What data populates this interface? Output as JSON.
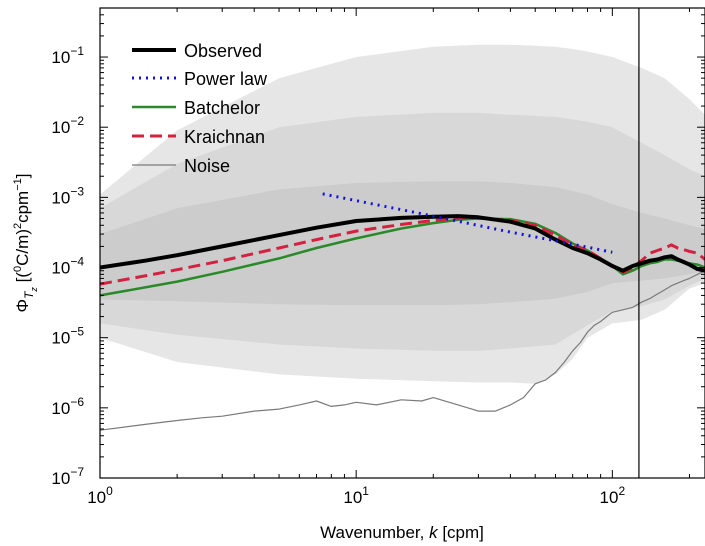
{
  "chart_data": {
    "type": "line",
    "title": "",
    "xlabel": "Wavenumber, k [cpm]",
    "xlabel_parts": {
      "prefix": "Wavenumber, ",
      "variable": "k",
      "suffix": " [cpm]"
    },
    "ylabel": "Φ_Tz [(°C/m)²cpm⁻¹]",
    "ylabel_parts": {
      "symbol": "Φ",
      "sub": "T",
      "subsub": "z",
      "open": " [(",
      "sup_degree": "0",
      "unit_mid": "C/m)",
      "sup_two": "2",
      "unit_cpm": "cpm",
      "sup_minus": "−1",
      "close": "]"
    },
    "xscale": "log",
    "yscale": "log",
    "xlim": [
      1,
      230
    ],
    "ylim": [
      1e-07,
      0.5
    ],
    "x_ticks": [
      {
        "value": 1,
        "base": "10",
        "exp": "0"
      },
      {
        "value": 10,
        "base": "10",
        "exp": "1"
      },
      {
        "value": 100,
        "base": "10",
        "exp": "2"
      }
    ],
    "y_ticks": [
      {
        "value": 1e-07,
        "base": "10",
        "exp": "−7"
      },
      {
        "value": 1e-06,
        "base": "10",
        "exp": "−6"
      },
      {
        "value": 1e-05,
        "base": "10",
        "exp": "−5"
      },
      {
        "value": 0.0001,
        "base": "10",
        "exp": "−4"
      },
      {
        "value": 0.001,
        "base": "10",
        "exp": "−3"
      },
      {
        "value": 0.01,
        "base": "10",
        "exp": "−2"
      },
      {
        "value": 0.1,
        "base": "10",
        "exp": "−1"
      }
    ],
    "legend_position": "top-left",
    "vertical_line_x": 127,
    "bands": [
      {
        "color": "#e6e6e6",
        "x": [
          1,
          2,
          5,
          10,
          20,
          30,
          40,
          50,
          60,
          70,
          80,
          100,
          130,
          160,
          200,
          230
        ],
        "upper": [
          0.0011,
          0.009,
          0.05,
          0.1,
          0.14,
          0.15,
          0.15,
          0.145,
          0.14,
          0.13,
          0.12,
          0.1,
          0.07,
          0.05,
          0.025,
          0.015
        ],
        "lower": [
          1e-05,
          4.5e-06,
          3e-06,
          2.6e-06,
          2.4e-06,
          2.3e-06,
          2.3e-06,
          2.2e-06,
          3e-06,
          5e-06,
          1e-05,
          1.6e-05,
          1.8e-05,
          2.5e-05,
          5e-05,
          6e-05
        ]
      },
      {
        "color": "#d8d8d8",
        "x": [
          1,
          2,
          5,
          10,
          20,
          30,
          40,
          60,
          80,
          100,
          130,
          160,
          200,
          230
        ],
        "upper": [
          0.0007,
          0.003,
          0.01,
          0.014,
          0.016,
          0.016,
          0.015,
          0.014,
          0.012,
          0.01,
          0.006,
          0.004,
          0.0025,
          0.002
        ],
        "lower": [
          1.6e-05,
          1.1e-05,
          8e-06,
          7e-06,
          6.5e-06,
          6.5e-06,
          7e-06,
          8e-06,
          1.5e-05,
          2.4e-05,
          2.8e-05,
          3.5e-05,
          5.5e-05,
          7e-05
        ]
      },
      {
        "color": "#cccccc",
        "x": [
          1,
          2,
          5,
          10,
          20,
          30,
          40,
          60,
          80,
          100,
          130,
          160,
          200,
          230
        ],
        "upper": [
          0.0003,
          0.0007,
          0.0013,
          0.0016,
          0.0017,
          0.0017,
          0.0016,
          0.0014,
          0.0011,
          0.0008,
          0.0006,
          0.0005,
          0.0004,
          0.00035
        ],
        "lower": [
          3.5e-05,
          3.3e-05,
          3e-05,
          2.9e-05,
          2.9e-05,
          3e-05,
          3.2e-05,
          3.6e-05,
          4.5e-05,
          6e-05,
          6.5e-05,
          7e-05,
          8e-05,
          9e-05
        ]
      }
    ],
    "series": [
      {
        "name": "Observed",
        "color": "#000000",
        "width": 4,
        "dash": "",
        "x": [
          1,
          1.5,
          2,
          3,
          5,
          7,
          10,
          15,
          20,
          25,
          30,
          40,
          50,
          60,
          70,
          80,
          90,
          100,
          110,
          120,
          130,
          140,
          150,
          160,
          170,
          180,
          190,
          200,
          215,
          230
        ],
        "y": [
          0.0001,
          0.000125,
          0.00015,
          0.0002,
          0.00029,
          0.00037,
          0.00046,
          0.00051,
          0.00053,
          0.00054,
          0.00052,
          0.00045,
          0.00036,
          0.00025,
          0.00019,
          0.00016,
          0.00013,
          0.000105,
          9e-05,
          0.000105,
          0.000115,
          0.000125,
          0.00013,
          0.00014,
          0.000145,
          0.00013,
          0.00012,
          0.00011,
          9.5e-05,
          9e-05
        ]
      },
      {
        "name": "Power law",
        "color": "#1010e0",
        "width": 3,
        "dash": "2 5",
        "x": [
          7.4,
          20,
          40,
          60,
          80,
          100
        ],
        "y": [
          0.00112,
          0.00054,
          0.00032,
          0.00024,
          0.000195,
          0.000165
        ]
      },
      {
        "name": "Batchelor",
        "color": "#2a8a2a",
        "width": 2.5,
        "dash": "",
        "x": [
          1,
          1.5,
          2,
          3,
          5,
          7,
          10,
          15,
          20,
          25,
          30,
          40,
          50,
          60,
          70,
          80,
          90,
          100,
          110,
          120,
          130,
          140,
          150,
          160,
          170,
          180,
          190,
          200,
          215,
          230
        ],
        "y": [
          4e-05,
          5.2e-05,
          6.3e-05,
          8.7e-05,
          0.000135,
          0.00019,
          0.00026,
          0.00036,
          0.00043,
          0.00048,
          0.0005,
          0.00049,
          0.00042,
          0.00031,
          0.00022,
          0.000175,
          0.000135,
          0.000105,
          8e-05,
          9e-05,
          0.000105,
          0.000115,
          0.00012,
          0.00013,
          0.00013,
          0.000125,
          0.00012,
          0.000115,
          0.00011,
          0.0001
        ]
      },
      {
        "name": "Kraichnan",
        "color": "#d62040",
        "width": 3,
        "dash": "12 6",
        "x": [
          1,
          1.5,
          2,
          3,
          5,
          7,
          10,
          15,
          20,
          25,
          30,
          40,
          50,
          60,
          70,
          80,
          90,
          100,
          110,
          120,
          130,
          140,
          150,
          160,
          170,
          180,
          190,
          200,
          215,
          230
        ],
        "y": [
          5.8e-05,
          7.6e-05,
          9.3e-05,
          0.000125,
          0.00019,
          0.00025,
          0.00033,
          0.00041,
          0.00047,
          0.0005,
          0.00051,
          0.00047,
          0.0004,
          0.00029,
          0.00021,
          0.000175,
          0.000135,
          0.000105,
          8.5e-05,
          0.0001,
          0.000125,
          0.00016,
          0.000175,
          0.00019,
          0.00021,
          0.00019,
          0.00018,
          0.00017,
          0.00016,
          0.00013
        ]
      },
      {
        "name": "Noise",
        "color": "#7a7a7a",
        "width": 1.2,
        "dash": "",
        "x": [
          1,
          1.5,
          2,
          2.5,
          3,
          4,
          5,
          6,
          7,
          8,
          9,
          10,
          12,
          15,
          18,
          20,
          25,
          30,
          35,
          40,
          45,
          50,
          55,
          60,
          65,
          70,
          75,
          80,
          85,
          90,
          95,
          100,
          110,
          120,
          130,
          140,
          150,
          160,
          170,
          180,
          190,
          200,
          215,
          230
        ],
        "y": [
          4.8e-07,
          5.8e-07,
          6.6e-07,
          7.2e-07,
          7.6e-07,
          9e-07,
          9.6e-07,
          1.1e-06,
          1.25e-06,
          1.05e-06,
          1.1e-06,
          1.2e-06,
          1.1e-06,
          1.3e-06,
          1.25e-06,
          1.4e-06,
          1.1e-06,
          9e-07,
          9e-07,
          1.1e-06,
          1.4e-06,
          2.2e-06,
          2.5e-06,
          3.2e-06,
          4.5e-06,
          6.5e-06,
          8.5e-06,
          1.2e-05,
          1.5e-05,
          1.7e-05,
          2e-05,
          2.3e-05,
          2.5e-05,
          2.7e-05,
          3.2e-05,
          3.6e-05,
          4.2e-05,
          4.8e-05,
          5.5e-05,
          6e-05,
          6.5e-05,
          7e-05,
          8e-05,
          9e-05
        ]
      }
    ]
  }
}
